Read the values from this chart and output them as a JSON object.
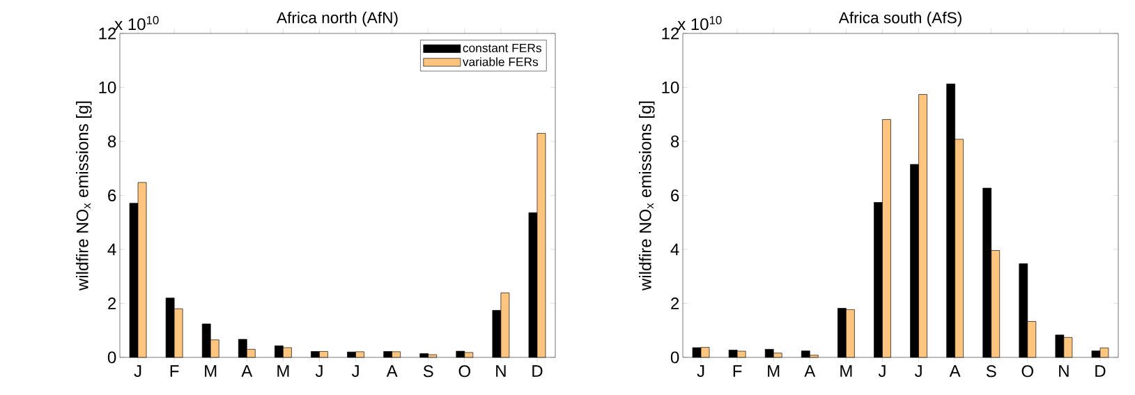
{
  "chart_data": [
    {
      "type": "bar",
      "title": "Africa north (AfN)",
      "ylabel": "wildfire NO$_{x}$ emissions [g]",
      "annotations": [
        "x 10$^{10}$"
      ],
      "categories": [
        "J",
        "F",
        "M",
        "A",
        "M",
        "J",
        "J",
        "A",
        "S",
        "O",
        "N",
        "D"
      ],
      "series": [
        {
          "name": "constant FERs",
          "color": "#000000",
          "values": [
            5.71,
            2.2,
            1.24,
            0.67,
            0.43,
            0.22,
            0.2,
            0.22,
            0.14,
            0.23,
            1.74,
            5.36
          ]
        },
        {
          "name": "variable FERs",
          "color": "#ffc57f",
          "values": [
            6.48,
            1.8,
            0.65,
            0.3,
            0.36,
            0.22,
            0.21,
            0.21,
            0.1,
            0.18,
            2.39,
            8.3
          ]
        }
      ],
      "ylim": [
        0,
        12
      ],
      "yticks": [
        0,
        2,
        4,
        6,
        8,
        10,
        12
      ],
      "legend": "top right",
      "grid": false
    },
    {
      "type": "bar",
      "title": "Africa south (AfS)",
      "ylabel": "wildfire NO$_{x}$ emissions [g]",
      "annotations": [
        "x 10$^{10}$"
      ],
      "categories": [
        "J",
        "F",
        "M",
        "A",
        "M",
        "J",
        "J",
        "A",
        "S",
        "O",
        "N",
        "D"
      ],
      "series": [
        {
          "color": "#000000",
          "values": [
            0.36,
            0.27,
            0.3,
            0.24,
            1.82,
            5.74,
            7.15,
            10.13,
            6.27,
            3.47,
            0.83,
            0.24
          ]
        },
        {
          "color": "#ffc57f",
          "values": [
            0.37,
            0.23,
            0.16,
            0.08,
            1.77,
            8.81,
            9.74,
            8.08,
            3.96,
            1.33,
            0.74,
            0.35
          ]
        }
      ],
      "ylim": [
        0,
        12
      ],
      "yticks": [
        0,
        2,
        4,
        6,
        8,
        10,
        12
      ],
      "legend": false,
      "grid": false
    }
  ]
}
